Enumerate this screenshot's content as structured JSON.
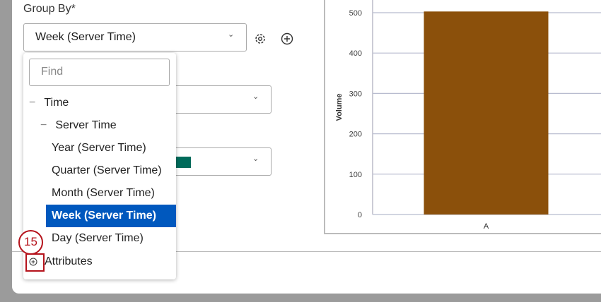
{
  "group_by": {
    "label": "Group By*",
    "value": "Week (Server Time)"
  },
  "swatch_color": "#006b5b",
  "dropdown": {
    "find_placeholder": "Find",
    "items": [
      {
        "label": "Time",
        "level": 0,
        "expander": "−"
      },
      {
        "label": "Server Time",
        "level": 1,
        "expander": "−"
      },
      {
        "label": "Year (Server Time)",
        "level": 2
      },
      {
        "label": "Quarter (Server Time)",
        "level": 2
      },
      {
        "label": "Month (Server Time)",
        "level": 2
      },
      {
        "label": "Week (Server Time)",
        "level": 2,
        "selected": true
      },
      {
        "label": "Day (Server Time)",
        "level": 2
      }
    ],
    "attributes": "Attributes"
  },
  "annotation": {
    "step": "15",
    "color": "#b5121b"
  },
  "chart_data": {
    "type": "bar",
    "categories": [
      "A"
    ],
    "values": [
      503
    ],
    "ylabel": "Volume",
    "xlabel": "",
    "ylim": [
      0,
      500
    ],
    "yticks": [
      "0",
      "100",
      "200",
      "300",
      "400",
      "500"
    ],
    "grid": true,
    "bar_color": "#8b500b"
  }
}
